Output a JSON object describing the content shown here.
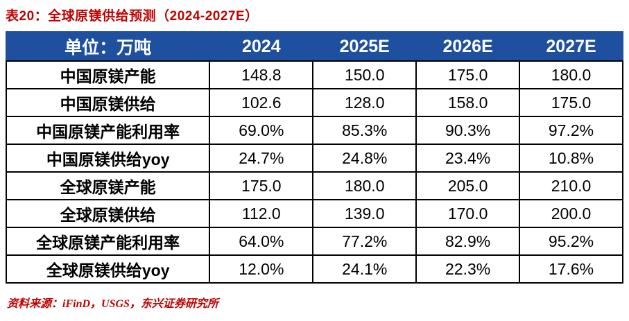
{
  "title": "表20：全球原镁供给预测（2024-2027E）",
  "source": "资料来源：iFinD，USGS，东兴证券研究所",
  "colors": {
    "header_bg": "#1F50A0",
    "accent_red": "#C00000",
    "border": "#000000",
    "header_text": "#FFFFFF",
    "body_text": "#000000"
  },
  "chart_data": {
    "type": "table",
    "title": "全球原镁供给预测（2024-2027E）",
    "unit": "万吨",
    "columns": [
      "单位：万吨",
      "2024",
      "2025E",
      "2026E",
      "2027E"
    ],
    "rows": [
      [
        "中国原镁产能",
        "148.8",
        "150.0",
        "175.0",
        "180.0"
      ],
      [
        "中国原镁供给",
        "102.6",
        "128.0",
        "158.0",
        "175.0"
      ],
      [
        "中国原镁产能利用率",
        "69.0%",
        "85.3%",
        "90.3%",
        "97.2%"
      ],
      [
        "中国原镁供给yoy",
        "24.7%",
        "24.8%",
        "23.4%",
        "10.8%"
      ],
      [
        "全球原镁产能",
        "175.0",
        "180.0",
        "205.0",
        "210.0"
      ],
      [
        "全球原镁供给",
        "112.0",
        "139.0",
        "170.0",
        "200.0"
      ],
      [
        "全球原镁产能利用率",
        "64.0%",
        "77.2%",
        "82.9%",
        "95.2%"
      ],
      [
        "全球原镁供给yoy",
        "12.0%",
        "24.1%",
        "22.3%",
        "17.6%"
      ]
    ]
  }
}
